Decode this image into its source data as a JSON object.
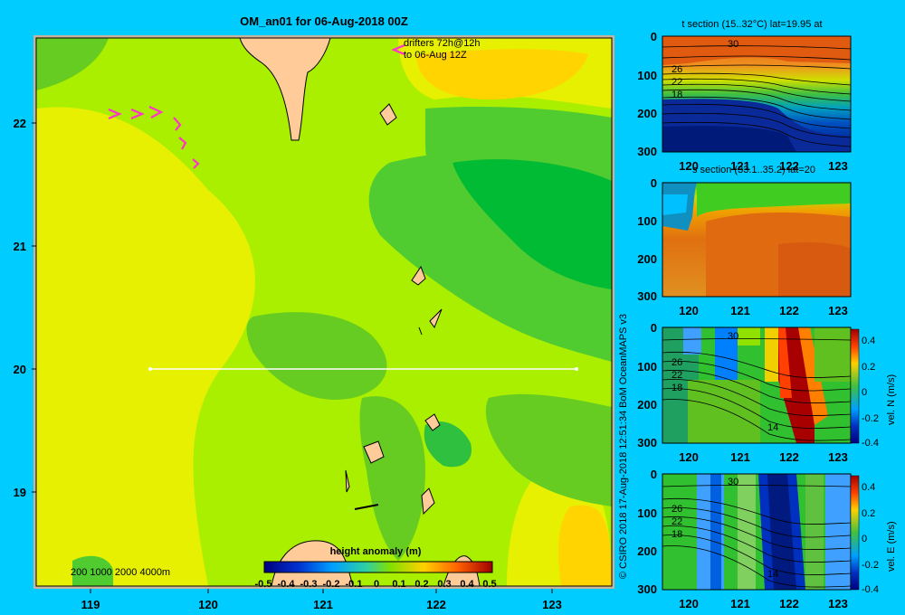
{
  "main": {
    "title": "OM_an01 for 06-Aug-2018 00Z",
    "drifters_line1": "drifters 72h@12h",
    "drifters_line2": "to 06-Aug 12Z",
    "depth_legend": "200  1000  2000  4000m",
    "colorbar_title": "height anomaly (m)",
    "colorbar_ticks": [
      "-0.5",
      "-0.4",
      "-0.3",
      "-0.2",
      "-0.1",
      "0",
      "0.1",
      "0.2",
      "0.3",
      "0.4",
      "0.5"
    ],
    "lon_ticks": [
      "119",
      "120",
      "121",
      "122",
      "123"
    ],
    "lat_ticks": [
      "22",
      "21",
      "20",
      "19"
    ]
  },
  "sections": [
    {
      "title": "t section (15..32°C) lat=19.95 at",
      "colorbar_label": "",
      "colorbar_ticks": []
    },
    {
      "title": "s section (33.1..35.2) lat=20",
      "colorbar_label": "",
      "colorbar_ticks": []
    },
    {
      "title": "",
      "colorbar_label": "vel. N  (m/s)",
      "colorbar_ticks": [
        "0.4",
        "0.2",
        "0",
        "-0.2",
        "-0.4"
      ]
    },
    {
      "title": "",
      "colorbar_label": "vel. E  (m/s)",
      "colorbar_ticks": [
        "0.4",
        "0.2",
        "0",
        "-0.2",
        "-0.4"
      ]
    }
  ],
  "section_depth_ticks": [
    "0",
    "100",
    "200",
    "300"
  ],
  "section_lon_ticks": [
    "120",
    "121",
    "122",
    "123"
  ],
  "contour_labels": {
    "t": [
      "30",
      "26",
      "22",
      "18"
    ],
    "vn": [
      "30",
      "26",
      "22",
      "18",
      "14"
    ],
    "ve": [
      "30",
      "26",
      "22",
      "18",
      "14"
    ]
  },
  "credit": "© CSIRO 2018   17-Aug-2018 12:51:34 BoM OceanMAPS v3",
  "colors": {
    "background": "#00ccff",
    "land": "#ffcc99",
    "shelf": "#c8b49a"
  }
}
